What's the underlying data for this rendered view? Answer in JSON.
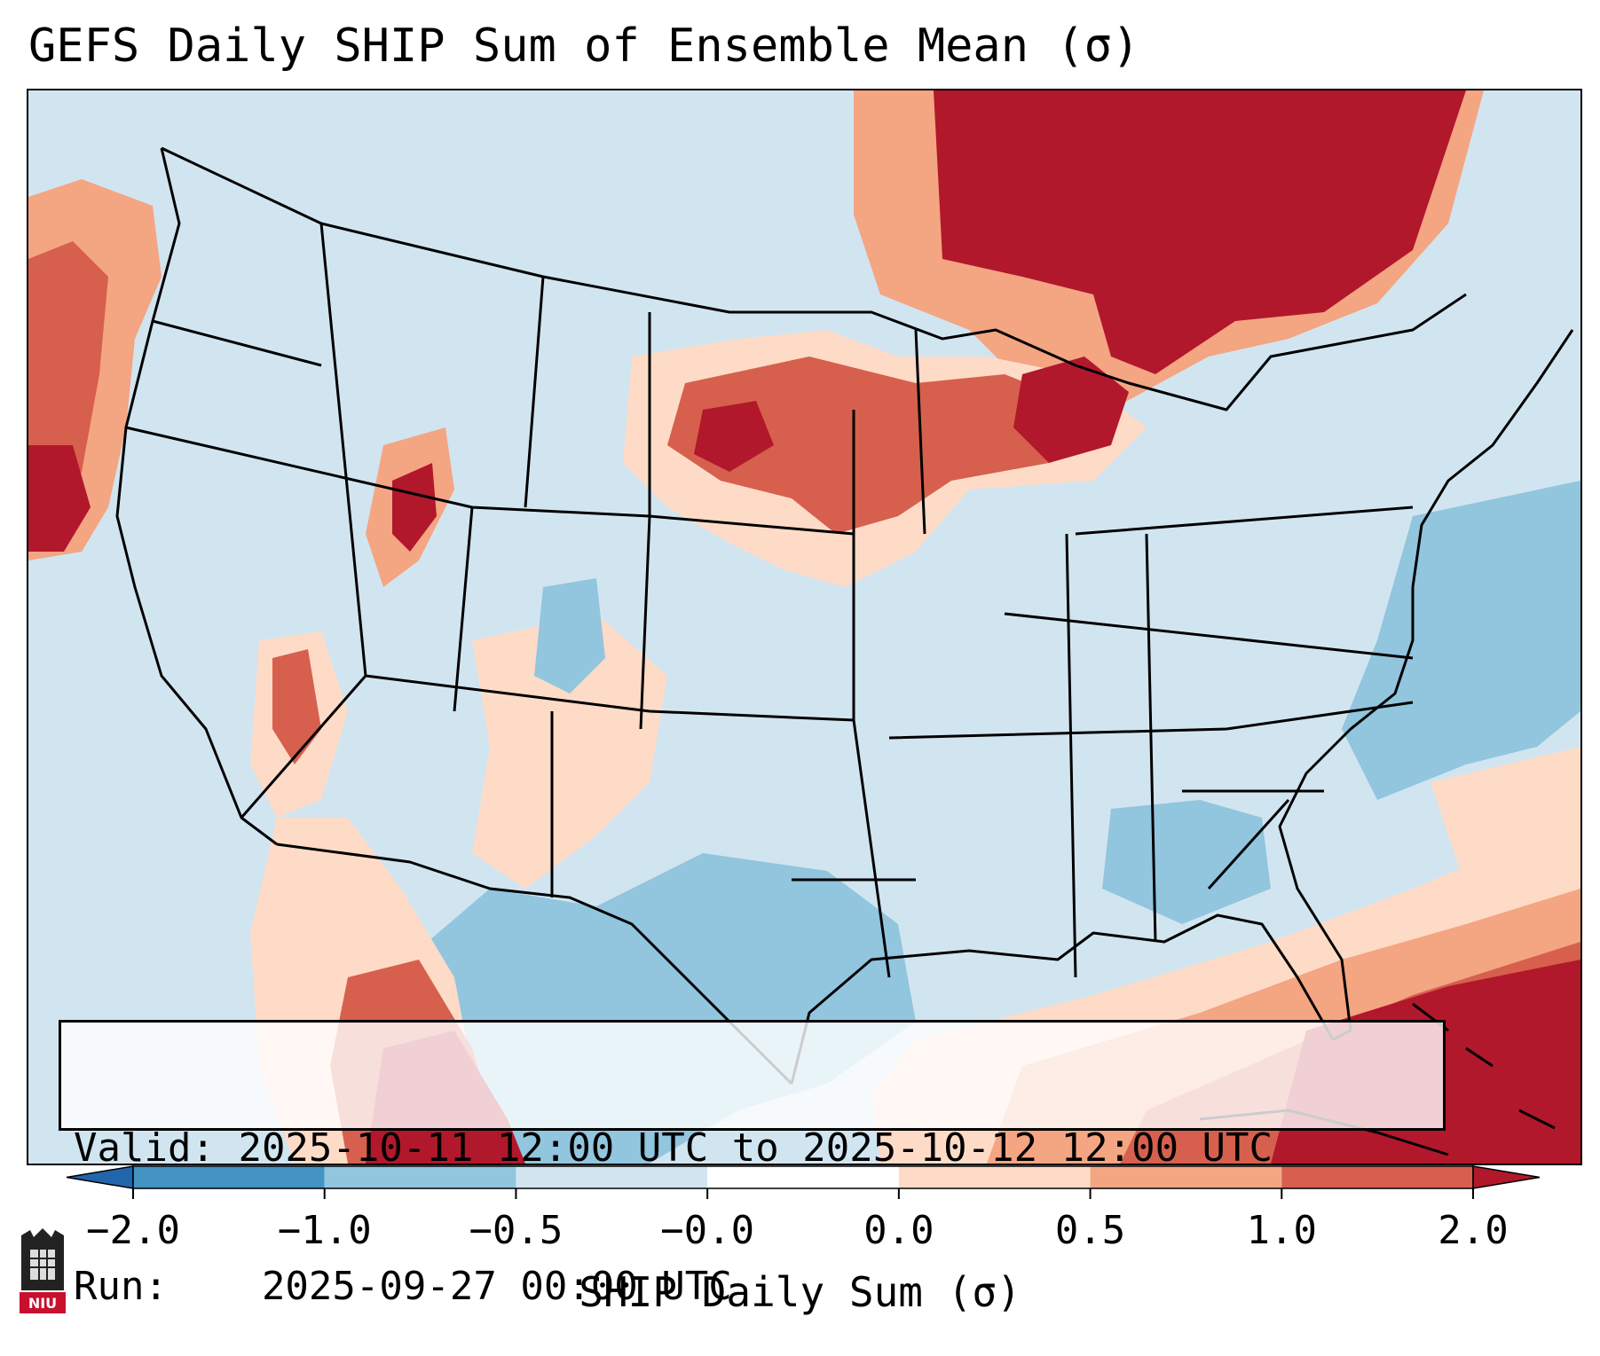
{
  "title": "GEFS Daily SHIP Sum of Ensemble Mean (σ)",
  "info": {
    "valid_label": "Valid:",
    "valid_value": "2025-10-11 12:00 UTC to 2025-10-12 12:00 UTC",
    "run_label": "Run:",
    "run_value": "2025-09-27 00:00 UTC"
  },
  "colorbar": {
    "label": "SHIP Daily Sum (σ)",
    "ticks": [
      "−2.0",
      "−1.0",
      "−0.5",
      "−0.0",
      "0.0",
      "0.5",
      "1.0",
      "2.0"
    ],
    "colors": [
      "#2166ac",
      "#4393c3",
      "#92c5de",
      "#d1e5f0",
      "#ffffff",
      "#fddbc7",
      "#f4a582",
      "#d6604d",
      "#b2182b"
    ],
    "extend": "both"
  },
  "logo": {
    "text": "NIU",
    "icon": "niu-castle-logo"
  },
  "map": {
    "projection": "Lambert Conformal CONUS",
    "background_color": "#d1e5f0"
  }
}
